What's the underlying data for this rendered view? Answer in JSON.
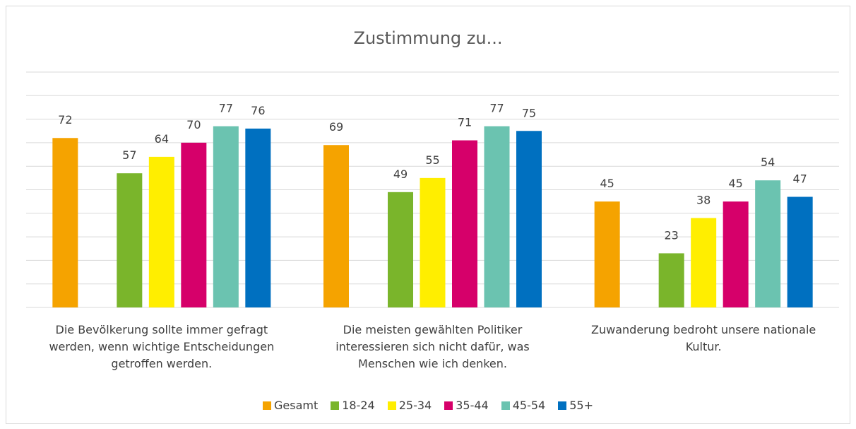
{
  "chart_data": {
    "type": "bar",
    "title": "Zustimmung zu...",
    "categories": [
      "Die Bevölkerung sollte immer gefragt werden, wenn wichtige Entscheidungen getroffen werden.",
      "Die meisten gewählten Politiker interessieren sich nicht dafür, was Menschen wie ich denken.",
      "Zuwanderung bedroht unsere nationale Kultur."
    ],
    "series": [
      {
        "name": "Gesamt",
        "color": "#f5a300",
        "values": [
          72,
          69,
          45
        ]
      },
      {
        "name": "18-24",
        "color": "#7ab52b",
        "values": [
          57,
          49,
          23
        ]
      },
      {
        "name": "25-34",
        "color": "#ffee00",
        "values": [
          64,
          55,
          38
        ]
      },
      {
        "name": "35-44",
        "color": "#d6006a",
        "values": [
          70,
          71,
          45
        ]
      },
      {
        "name": "45-54",
        "color": "#6bc3b0",
        "values": [
          77,
          77,
          54
        ]
      },
      {
        "name": "55+",
        "color": "#0070c0",
        "values": [
          76,
          75,
          47
        ]
      }
    ],
    "ylim": [
      0,
      100
    ],
    "yticks": [
      0,
      10,
      20,
      30,
      40,
      50,
      60,
      70,
      80,
      90,
      100
    ],
    "grid": true,
    "legend": "bottom"
  }
}
